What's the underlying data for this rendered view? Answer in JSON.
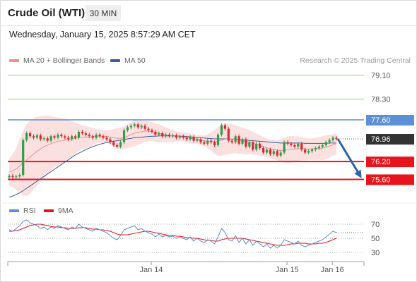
{
  "instrument": "Crude Oil (WTI)",
  "interval": "30 MIN",
  "timestamp": "Wednesday, January 15, 2025 8:57:29 AM CET",
  "credit": "Research © 2025 Trading Central",
  "colors": {
    "ma20": "#f08f8f",
    "ma50": "#3b5e9c",
    "bollinger_fill": "#fbe0e0",
    "resistance_green": "#9ccc7a",
    "pivot_blue": "#5b8fd6",
    "support_red": "#e8141b",
    "current_price_bg": "#333333",
    "arrow": "#2d63a8",
    "rsi": "#5b8fd6",
    "rsi_ma": "#e8141b",
    "candle_up": "#2f9d4a",
    "candle_down": "#d8292f"
  },
  "chart_data": [
    {
      "type": "candlestick",
      "legend": [
        {
          "label": "MA 20 + Bollinger Bands",
          "color": "#f08f8f"
        },
        {
          "label": "MA 50",
          "color": "#3b5e9c"
        }
      ],
      "price_range": [
        74.9,
        79.4
      ],
      "x_ticks": [
        {
          "label": "Jan 14",
          "index": 40
        },
        {
          "label": "Jan 15",
          "index": 79
        },
        {
          "label": "Jan 16",
          "index": 92
        }
      ],
      "levels": [
        {
          "label": "79.10",
          "value": 79.1,
          "kind": "resistance"
        },
        {
          "label": "78.30",
          "value": 78.3,
          "kind": "resistance"
        },
        {
          "label": "77.60",
          "value": 77.6,
          "kind": "pivot"
        },
        {
          "label": "76.96",
          "value": 76.96,
          "kind": "current"
        },
        {
          "label": "76.20",
          "value": 76.2,
          "kind": "support"
        },
        {
          "label": "75.60",
          "value": 75.6,
          "kind": "support"
        }
      ],
      "close": [
        75.72,
        75.68,
        75.7,
        75.75,
        76.92,
        77.15,
        77.05,
        77.0,
        77.08,
        76.95,
        76.98,
        76.9,
        77.05,
        77.0,
        77.1,
        77.05,
        77.0,
        76.95,
        77.05,
        77.0,
        77.2,
        77.15,
        77.1,
        77.05,
        77.0,
        77.1,
        77.05,
        77.0,
        76.95,
        76.85,
        76.75,
        76.7,
        76.85,
        77.25,
        77.35,
        77.4,
        77.45,
        77.35,
        77.4,
        77.3,
        77.25,
        77.2,
        77.1,
        77.15,
        77.05,
        77.1,
        77.05,
        77.08,
        77.0,
        77.05,
        77.0,
        76.95,
        77.02,
        76.9,
        76.95,
        76.85,
        76.8,
        76.9,
        76.85,
        76.75,
        77.1,
        77.42,
        77.3,
        76.9,
        76.85,
        77.05,
        76.8,
        76.95,
        76.7,
        76.85,
        76.6,
        76.8,
        76.65,
        76.5,
        76.6,
        76.45,
        76.55,
        76.4,
        76.5,
        76.85,
        76.8,
        76.75,
        76.7,
        76.8,
        76.6,
        76.5,
        76.55,
        76.6,
        76.65,
        76.7,
        76.75,
        76.85,
        76.92,
        77.0,
        76.96
      ],
      "ma20": [
        75.85,
        75.9,
        75.95,
        76.05,
        76.15,
        76.25,
        76.35,
        76.45,
        76.55,
        76.62,
        76.7,
        76.75,
        76.8,
        76.85,
        76.88,
        76.9,
        76.92,
        76.94,
        76.96,
        76.98,
        77.0,
        77.02,
        77.02,
        77.02,
        77.03,
        77.05,
        77.05,
        77.05,
        77.04,
        77.02,
        77.0,
        76.98,
        76.98,
        77.0,
        77.05,
        77.1,
        77.15,
        77.18,
        77.2,
        77.22,
        77.22,
        77.2,
        77.18,
        77.15,
        77.12,
        77.1,
        77.08,
        77.05,
        77.05,
        77.04,
        77.02,
        77.0,
        76.98,
        76.96,
        76.95,
        76.92,
        76.9,
        76.88,
        76.87,
        76.86,
        76.88,
        76.92,
        76.95,
        76.96,
        76.96,
        76.95,
        76.92,
        76.9,
        76.87,
        76.85,
        76.82,
        76.78,
        76.74,
        76.7,
        76.66,
        76.63,
        76.6,
        76.58,
        76.57,
        76.58,
        76.6,
        76.61,
        76.62,
        76.63,
        76.63,
        76.62,
        76.62,
        76.62,
        76.63,
        76.64,
        76.65,
        76.68,
        76.72,
        76.76,
        76.8
      ],
      "bb_upper": [
        76.3,
        76.45,
        76.65,
        76.95,
        77.25,
        77.45,
        77.58,
        77.65,
        77.7,
        77.72,
        77.74,
        77.74,
        77.73,
        77.7,
        77.68,
        77.66,
        77.64,
        77.6,
        77.55,
        77.5,
        77.46,
        77.42,
        77.4,
        77.36,
        77.33,
        77.3,
        77.28,
        77.26,
        77.25,
        77.26,
        77.3,
        77.32,
        77.34,
        77.38,
        77.45,
        77.52,
        77.58,
        77.6,
        77.6,
        77.58,
        77.55,
        77.52,
        77.48,
        77.45,
        77.4,
        77.35,
        77.3,
        77.26,
        77.22,
        77.2,
        77.18,
        77.16,
        77.14,
        77.12,
        77.1,
        77.08,
        77.08,
        77.12,
        77.18,
        77.26,
        77.36,
        77.44,
        77.48,
        77.48,
        77.45,
        77.42,
        77.38,
        77.34,
        77.3,
        77.25,
        77.2,
        77.14,
        77.08,
        77.03,
        76.98,
        76.94,
        76.92,
        76.92,
        76.95,
        77.0,
        77.04,
        77.06,
        77.05,
        77.04,
        77.02,
        77.0,
        76.98,
        76.98,
        77.0,
        77.02,
        77.05,
        77.08,
        77.1,
        77.12,
        77.14
      ],
      "bb_lower": [
        75.4,
        75.35,
        75.25,
        75.15,
        75.05,
        75.05,
        75.12,
        75.25,
        75.4,
        75.52,
        75.66,
        75.76,
        75.87,
        76.0,
        76.08,
        76.14,
        76.2,
        76.28,
        76.37,
        76.46,
        76.54,
        76.62,
        76.64,
        76.68,
        76.73,
        76.8,
        76.82,
        76.84,
        76.83,
        76.78,
        76.7,
        76.64,
        76.62,
        76.62,
        76.65,
        76.68,
        76.72,
        76.76,
        76.8,
        76.86,
        76.89,
        76.88,
        76.88,
        76.85,
        76.84,
        76.85,
        76.86,
        76.84,
        76.88,
        76.88,
        76.86,
        76.84,
        76.82,
        76.8,
        76.8,
        76.76,
        76.72,
        76.64,
        76.56,
        76.46,
        76.4,
        76.4,
        76.42,
        76.44,
        76.47,
        76.48,
        76.46,
        76.46,
        76.44,
        76.45,
        76.44,
        76.42,
        76.4,
        76.37,
        76.34,
        76.32,
        76.28,
        76.24,
        76.19,
        76.16,
        76.16,
        76.16,
        76.19,
        76.22,
        76.24,
        76.24,
        76.26,
        76.26,
        76.26,
        76.26,
        76.25,
        76.28,
        76.34,
        76.4,
        76.46
      ],
      "ma50": [
        75.0,
        75.04,
        75.09,
        75.15,
        75.22,
        75.3,
        75.38,
        75.46,
        75.54,
        75.62,
        75.7,
        75.78,
        75.86,
        75.94,
        76.02,
        76.1,
        76.18,
        76.26,
        76.34,
        76.42,
        76.48,
        76.54,
        76.6,
        76.65,
        76.7,
        76.74,
        76.78,
        76.81,
        76.84,
        76.86,
        76.88,
        76.9,
        76.92,
        76.94,
        76.96,
        76.98,
        77.0,
        77.01,
        77.02,
        77.03,
        77.04,
        77.05,
        77.05,
        77.06,
        77.06,
        77.06,
        77.06,
        77.06,
        77.06,
        77.05,
        77.05,
        77.04,
        77.03,
        77.02,
        77.01,
        77.0,
        76.99,
        76.98,
        76.97,
        76.96,
        76.96,
        76.96,
        76.96,
        76.96,
        76.95,
        76.95,
        76.94,
        76.93,
        76.92,
        76.91,
        76.9,
        76.89,
        76.88,
        76.87,
        76.86,
        76.85,
        76.84,
        76.83,
        76.82,
        76.82,
        76.82,
        76.82,
        76.82,
        76.82,
        76.82,
        76.81,
        76.81,
        76.81,
        76.81,
        76.81,
        76.81,
        76.81,
        76.82,
        76.82,
        76.82
      ]
    },
    {
      "type": "line",
      "legend": [
        {
          "label": "RSI",
          "color": "#5b8fd6"
        },
        {
          "label": "9MA",
          "color": "#e8141b"
        }
      ],
      "y_ticks": [
        "70",
        "50",
        "30"
      ],
      "ylim": [
        20,
        80
      ],
      "rsi": [
        62,
        60,
        64,
        68,
        74,
        76,
        72,
        70,
        68,
        64,
        66,
        62,
        66,
        64,
        68,
        66,
        64,
        62,
        66,
        64,
        70,
        66,
        64,
        62,
        60,
        64,
        62,
        60,
        58,
        54,
        50,
        48,
        54,
        62,
        64,
        66,
        68,
        62,
        64,
        60,
        58,
        56,
        52,
        56,
        52,
        54,
        52,
        53,
        50,
        52,
        50,
        48,
        52,
        46,
        50,
        46,
        44,
        48,
        46,
        42,
        52,
        64,
        58,
        48,
        46,
        54,
        44,
        50,
        42,
        48,
        40,
        46,
        42,
        38,
        42,
        36,
        40,
        36,
        40,
        48,
        46,
        44,
        42,
        46,
        40,
        38,
        40,
        42,
        44,
        46,
        48,
        52,
        56,
        60,
        58
      ],
      "rsi_ma": [
        60,
        60,
        61,
        62,
        64,
        66,
        68,
        69,
        70,
        70,
        69,
        68,
        67,
        66,
        66,
        65,
        65,
        64,
        64,
        64,
        65,
        65,
        65,
        64,
        63,
        63,
        62,
        62,
        61,
        60,
        58,
        56,
        55,
        55,
        55,
        56,
        57,
        58,
        59,
        60,
        60,
        59,
        58,
        57,
        56,
        55,
        54,
        54,
        53,
        53,
        52,
        51,
        51,
        50,
        50,
        49,
        48,
        47,
        47,
        46,
        46,
        48,
        49,
        50,
        50,
        50,
        50,
        50,
        49,
        48,
        47,
        46,
        45,
        44,
        43,
        42,
        41,
        40,
        40,
        40,
        41,
        42,
        42,
        43,
        43,
        43,
        42,
        42,
        42,
        43,
        43,
        44,
        46,
        48,
        50
      ]
    }
  ]
}
